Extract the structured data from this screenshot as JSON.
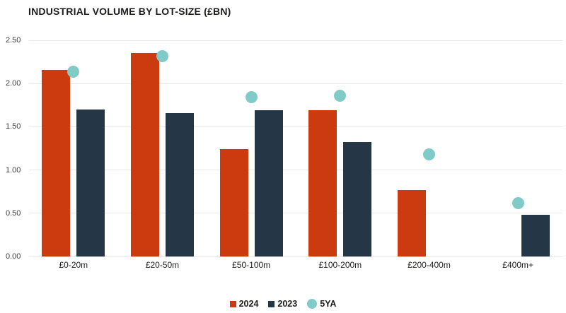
{
  "chart_data": {
    "type": "bar",
    "title": "INDUSTRIAL VOLUME BY LOT-SIZE (£BN)",
    "categories": [
      "£0-20m",
      "£20-50m",
      "£50-100m",
      "£100-200m",
      "£200-400m",
      "£400m+"
    ],
    "series": [
      {
        "name": "2024",
        "mark": "bar",
        "color": "#cc3a10",
        "values": [
          2.16,
          2.35,
          1.24,
          1.69,
          0.77,
          null
        ]
      },
      {
        "name": "2023",
        "mark": "bar",
        "color": "#253746",
        "values": [
          1.7,
          1.66,
          1.69,
          1.32,
          null,
          0.48
        ]
      },
      {
        "name": "5YA",
        "mark": "point",
        "color": "#80cbc8",
        "values": [
          2.14,
          2.32,
          1.84,
          1.86,
          1.18,
          0.62
        ]
      }
    ],
    "xlabel": "",
    "ylabel": "",
    "ylim": [
      0,
      2.5
    ],
    "ytick_step": 0.5,
    "ytick_labels": [
      "0.00",
      "0.50",
      "1.00",
      "1.50",
      "2.00",
      "2.50"
    ],
    "grid": "horizontal",
    "legend_position": "bottom-center"
  }
}
